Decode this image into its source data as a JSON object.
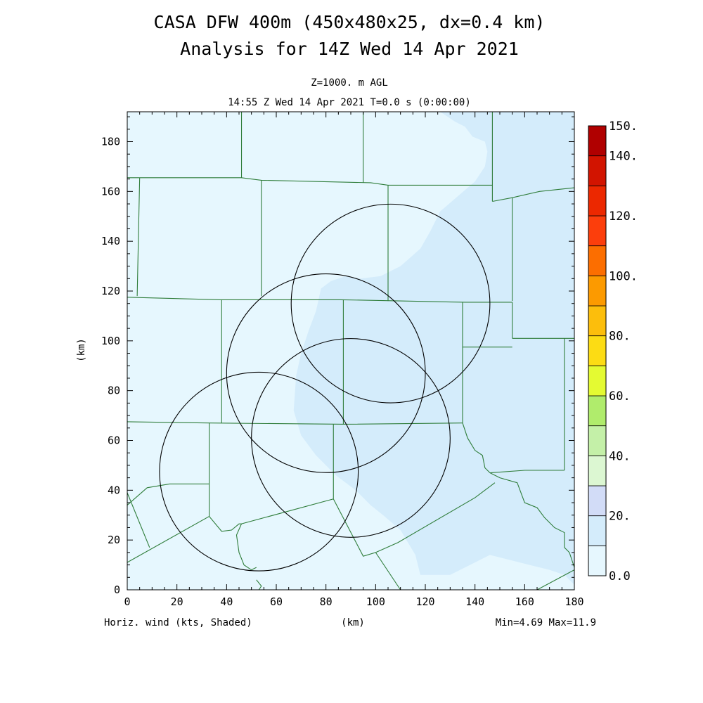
{
  "title": {
    "line1": "CASA DFW 400m (450x480x25, dx=0.4 km)",
    "line2": "Analysis for 14Z Wed 14 Apr 2021"
  },
  "subtitle": {
    "level": "Z=1000. m AGL",
    "time": "14:55 Z Wed 14 Apr 2021   T=0.0 s (0:00:00)"
  },
  "footer": {
    "field": "Horiz. wind (kts, Shaded)",
    "xunit": "(km)",
    "minmax": "Min=4.69 Max=11.9"
  },
  "colors": {
    "field_low": "#e6f7fe",
    "field_mid": "#d4ecfb",
    "county_line": "#2f7d3a",
    "radar_ring": "#000000"
  },
  "chart_data": {
    "type": "heatmap",
    "xlabel": "(km)",
    "ylabel": "(km)",
    "xlim": [
      0,
      180
    ],
    "ylim": [
      0,
      192
    ],
    "xticks": [
      0,
      20,
      40,
      60,
      80,
      100,
      120,
      140,
      160,
      180
    ],
    "yticks": [
      0,
      20,
      40,
      60,
      80,
      100,
      120,
      140,
      160,
      180
    ],
    "grid": false,
    "radar_rings": [
      {
        "cx": 53,
        "cy": 47.5,
        "r": 40
      },
      {
        "cx": 80,
        "cy": 87,
        "r": 40
      },
      {
        "cx": 90,
        "cy": 61,
        "r": 40
      },
      {
        "cx": 106,
        "cy": 115,
        "r": 40
      }
    ],
    "colorbar": {
      "labels": [
        "0.0",
        "20.",
        "40.",
        "60.",
        "80.",
        "100.",
        "120.",
        "140.",
        "150."
      ],
      "label_values": [
        0,
        20,
        40,
        60,
        80,
        100,
        120,
        140,
        150
      ],
      "min": 0,
      "max": 150,
      "bins": [
        {
          "from": 0,
          "to": 10,
          "color": "#e6f7fe"
        },
        {
          "from": 10,
          "to": 20,
          "color": "#d4ecfb"
        },
        {
          "from": 20,
          "to": 30,
          "color": "#d2dcf7"
        },
        {
          "from": 30,
          "to": 40,
          "color": "#dcf7d2"
        },
        {
          "from": 40,
          "to": 50,
          "color": "#c4f0a8"
        },
        {
          "from": 50,
          "to": 60,
          "color": "#b0ec6c"
        },
        {
          "from": 60,
          "to": 70,
          "color": "#e4fa32"
        },
        {
          "from": 70,
          "to": 80,
          "color": "#fcdc14"
        },
        {
          "from": 80,
          "to": 90,
          "color": "#fcbe0c"
        },
        {
          "from": 90,
          "to": 100,
          "color": "#fc9a00"
        },
        {
          "from": 100,
          "to": 110,
          "color": "#fc6e00"
        },
        {
          "from": 110,
          "to": 120,
          "color": "#fc3e0c"
        },
        {
          "from": 120,
          "to": 130,
          "color": "#ec2800"
        },
        {
          "from": 130,
          "to": 140,
          "color": "#d21400"
        },
        {
          "from": 140,
          "to": 150,
          "color": "#b00000"
        }
      ]
    },
    "field_regions": [
      {
        "name": "higher-wind-band",
        "color": "#d4ecfb",
        "points": [
          [
            126,
            192
          ],
          [
            132,
            188
          ],
          [
            136,
            186
          ],
          [
            139,
            182
          ],
          [
            144,
            180
          ],
          [
            145,
            176
          ],
          [
            144,
            170
          ],
          [
            140,
            164
          ],
          [
            133,
            158
          ],
          [
            126,
            152
          ],
          [
            122,
            144
          ],
          [
            118,
            137
          ],
          [
            110,
            130
          ],
          [
            102,
            126
          ],
          [
            94,
            125
          ],
          [
            88,
            126
          ],
          [
            82,
            124
          ],
          [
            78,
            121
          ],
          [
            76,
            112
          ],
          [
            73,
            104
          ],
          [
            70,
            95
          ],
          [
            68,
            86
          ],
          [
            67,
            72
          ],
          [
            70,
            62
          ],
          [
            76,
            54
          ],
          [
            84,
            46
          ],
          [
            92,
            40
          ],
          [
            98,
            34
          ],
          [
            103,
            30
          ],
          [
            110,
            24
          ],
          [
            116,
            14
          ],
          [
            118,
            6
          ],
          [
            130,
            6
          ],
          [
            138,
            10
          ],
          [
            146,
            14
          ],
          [
            154,
            12
          ],
          [
            162,
            10
          ],
          [
            170,
            8
          ],
          [
            176,
            6
          ],
          [
            180,
            2
          ],
          [
            180,
            192
          ]
        ]
      }
    ],
    "county_lines": [
      [
        [
          0,
          165.5
        ],
        [
          6,
          165.5
        ],
        [
          46,
          165.5
        ],
        [
          54,
          164.5
        ],
        [
          98,
          163.5
        ],
        [
          105,
          162.5
        ],
        [
          147,
          162.5
        ]
      ],
      [
        [
          46,
          192
        ],
        [
          46,
          165.5
        ]
      ],
      [
        [
          95,
          192
        ],
        [
          95,
          163.5
        ]
      ],
      [
        [
          147,
          192
        ],
        [
          147,
          156
        ]
      ],
      [
        [
          147,
          156
        ],
        [
          155,
          157.5
        ],
        [
          166,
          160
        ],
        [
          180,
          161.5
        ]
      ],
      [
        [
          105,
          162.5
        ],
        [
          105,
          116
        ]
      ],
      [
        [
          155,
          157.5
        ],
        [
          155,
          116
        ]
      ],
      [
        [
          5,
          165.5
        ],
        [
          4,
          118
        ]
      ],
      [
        [
          54,
          164.5
        ],
        [
          54,
          118
        ]
      ],
      [
        [
          0,
          117.5
        ],
        [
          38,
          116.5
        ],
        [
          86,
          116.5
        ],
        [
          136,
          115.5
        ],
        [
          155,
          115.5
        ]
      ],
      [
        [
          38,
          116.5
        ],
        [
          38,
          67
        ]
      ],
      [
        [
          87,
          116.5
        ],
        [
          87,
          66.5
        ]
      ],
      [
        [
          135,
          115.5
        ],
        [
          135,
          67
        ]
      ],
      [
        [
          135,
          97.5
        ],
        [
          155,
          97.5
        ]
      ],
      [
        [
          155,
          115.5
        ],
        [
          155,
          101
        ]
      ],
      [
        [
          155,
          101
        ],
        [
          178,
          101
        ],
        [
          180,
          101
        ]
      ],
      [
        [
          176,
          101
        ],
        [
          176,
          48
        ]
      ],
      [
        [
          0,
          67.5
        ],
        [
          33,
          67
        ],
        [
          87,
          66.5
        ],
        [
          135,
          67
        ]
      ],
      [
        [
          33,
          67
        ],
        [
          33,
          29.5
        ]
      ],
      [
        [
          83,
          66.5
        ],
        [
          83,
          36.5
        ]
      ],
      [
        [
          135,
          67
        ],
        [
          137,
          61
        ],
        [
          140,
          56
        ],
        [
          143,
          54
        ],
        [
          144,
          49
        ],
        [
          146,
          47
        ]
      ],
      [
        [
          146,
          47
        ],
        [
          160,
          48
        ],
        [
          176,
          48
        ]
      ],
      [
        [
          146,
          47
        ],
        [
          150,
          45
        ],
        [
          157,
          43
        ],
        [
          160,
          35
        ],
        [
          165,
          33
        ],
        [
          168,
          29
        ],
        [
          172,
          25
        ],
        [
          176,
          23
        ],
        [
          176,
          17
        ],
        [
          178,
          15
        ],
        [
          180,
          9
        ]
      ],
      [
        [
          0,
          34
        ],
        [
          8,
          41
        ],
        [
          17,
          42.5
        ],
        [
          33,
          42.5
        ]
      ],
      [
        [
          0,
          11
        ],
        [
          33,
          29.5
        ],
        [
          38,
          23.5
        ],
        [
          42,
          24
        ],
        [
          45,
          26.5
        ],
        [
          46,
          26.5
        ]
      ],
      [
        [
          46,
          26.5
        ],
        [
          83,
          36.5
        ]
      ],
      [
        [
          83,
          36.5
        ],
        [
          95,
          13.5
        ],
        [
          100,
          15
        ],
        [
          109,
          19
        ],
        [
          140,
          37
        ],
        [
          148,
          43
        ]
      ],
      [
        [
          9,
          17
        ],
        [
          0,
          39
        ]
      ],
      [
        [
          46,
          26.5
        ],
        [
          44,
          22
        ],
        [
          45,
          15
        ],
        [
          47,
          10
        ],
        [
          50,
          8
        ],
        [
          52,
          9
        ]
      ],
      [
        [
          100,
          15
        ],
        [
          110,
          0
        ]
      ],
      [
        [
          52,
          4
        ],
        [
          54,
          1.5
        ],
        [
          53,
          0
        ]
      ],
      [
        [
          165,
          0
        ],
        [
          180,
          8
        ]
      ]
    ]
  }
}
